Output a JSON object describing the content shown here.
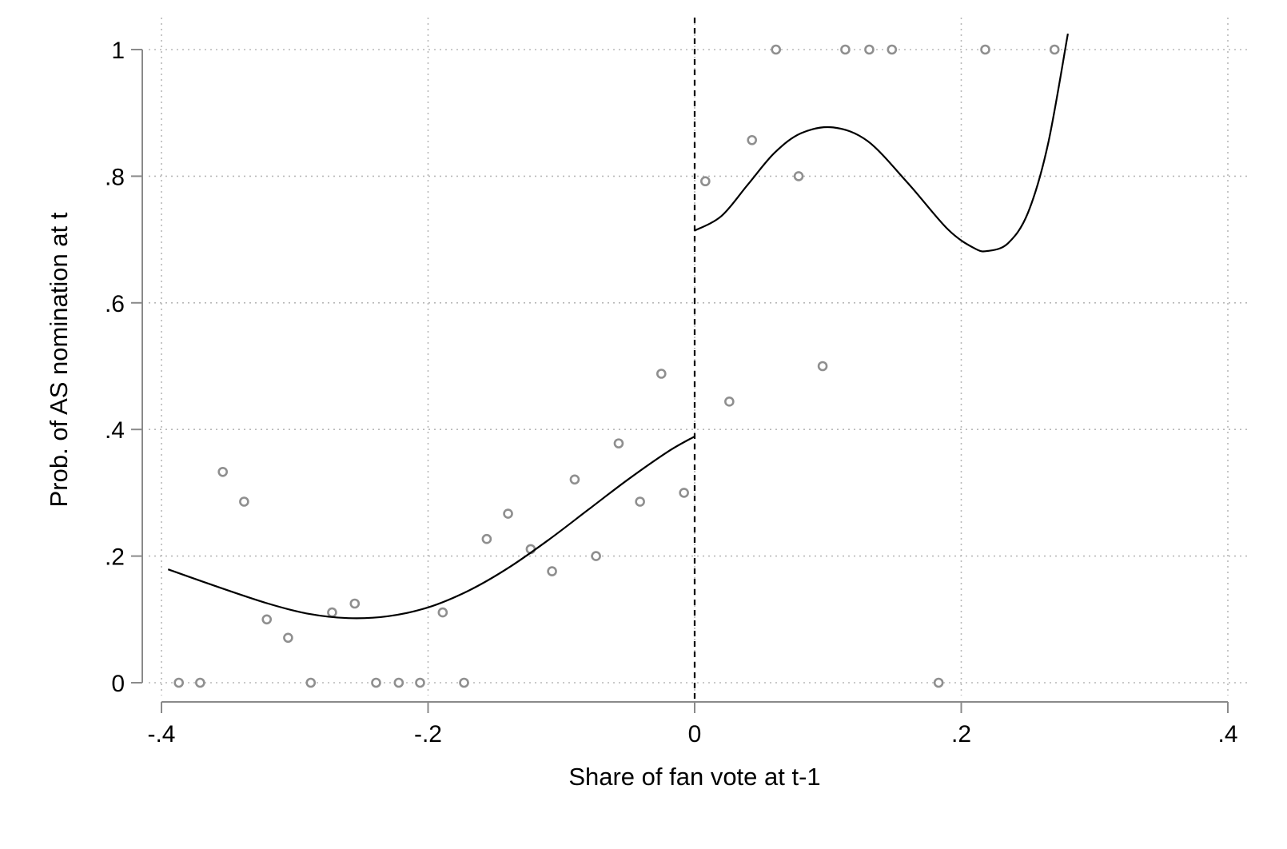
{
  "chart_data": {
    "type": "scatter",
    "title": "",
    "xlabel": "Share of fan vote at t-1",
    "ylabel": "Prob. of AS nomination at t",
    "xlim": [
      -0.4,
      0.4
    ],
    "ylim": [
      0,
      1
    ],
    "x_ticks": [
      -0.4,
      -0.2,
      0,
      0.2,
      0.4
    ],
    "x_tick_labels": [
      "-.4",
      "-.2",
      "0",
      ".2",
      ".4"
    ],
    "y_ticks": [
      0,
      0.2,
      0.4,
      0.6,
      0.8,
      1
    ],
    "y_tick_labels": [
      "0",
      ".2",
      ".4",
      ".6",
      ".8",
      "1"
    ],
    "grid": true,
    "cutoff_x": 0,
    "colors": {
      "points": "#8f8f8f",
      "fit": "#000000",
      "grid": "#b8b8b8",
      "axis": "#8a8a8a"
    },
    "points": [
      {
        "x": -0.387,
        "y": 0.0
      },
      {
        "x": -0.371,
        "y": 0.0
      },
      {
        "x": -0.354,
        "y": 0.333
      },
      {
        "x": -0.338,
        "y": 0.286
      },
      {
        "x": -0.321,
        "y": 0.1
      },
      {
        "x": -0.305,
        "y": 0.071
      },
      {
        "x": -0.288,
        "y": 0.0
      },
      {
        "x": -0.272,
        "y": 0.111
      },
      {
        "x": -0.255,
        "y": 0.125
      },
      {
        "x": -0.239,
        "y": 0.0
      },
      {
        "x": -0.222,
        "y": 0.0
      },
      {
        "x": -0.206,
        "y": 0.0
      },
      {
        "x": -0.189,
        "y": 0.111
      },
      {
        "x": -0.173,
        "y": 0.0
      },
      {
        "x": -0.156,
        "y": 0.227
      },
      {
        "x": -0.14,
        "y": 0.267
      },
      {
        "x": -0.123,
        "y": 0.211
      },
      {
        "x": -0.107,
        "y": 0.176
      },
      {
        "x": -0.09,
        "y": 0.321
      },
      {
        "x": -0.074,
        "y": 0.2
      },
      {
        "x": -0.057,
        "y": 0.378
      },
      {
        "x": -0.041,
        "y": 0.286
      },
      {
        "x": -0.025,
        "y": 0.488
      },
      {
        "x": -0.008,
        "y": 0.3
      },
      {
        "x": 0.008,
        "y": 0.792
      },
      {
        "x": 0.026,
        "y": 0.444
      },
      {
        "x": 0.043,
        "y": 0.857
      },
      {
        "x": 0.061,
        "y": 1.0
      },
      {
        "x": 0.078,
        "y": 0.8
      },
      {
        "x": 0.096,
        "y": 0.5
      },
      {
        "x": 0.113,
        "y": 1.0
      },
      {
        "x": 0.131,
        "y": 1.0
      },
      {
        "x": 0.148,
        "y": 1.0
      },
      {
        "x": 0.183,
        "y": 0.0
      },
      {
        "x": 0.218,
        "y": 1.0
      },
      {
        "x": 0.27,
        "y": 1.0
      }
    ],
    "fit_left": [
      {
        "x": -0.395,
        "y": 0.179
      },
      {
        "x": -0.36,
        "y": 0.153
      },
      {
        "x": -0.32,
        "y": 0.125
      },
      {
        "x": -0.29,
        "y": 0.109
      },
      {
        "x": -0.26,
        "y": 0.102
      },
      {
        "x": -0.23,
        "y": 0.105
      },
      {
        "x": -0.2,
        "y": 0.119
      },
      {
        "x": -0.17,
        "y": 0.145
      },
      {
        "x": -0.14,
        "y": 0.181
      },
      {
        "x": -0.11,
        "y": 0.225
      },
      {
        "x": -0.08,
        "y": 0.273
      },
      {
        "x": -0.05,
        "y": 0.321
      },
      {
        "x": -0.02,
        "y": 0.365
      },
      {
        "x": 0.0,
        "y": 0.389
      }
    ],
    "fit_right": [
      {
        "x": 0.0,
        "y": 0.714
      },
      {
        "x": 0.02,
        "y": 0.737
      },
      {
        "x": 0.04,
        "y": 0.787
      },
      {
        "x": 0.06,
        "y": 0.837
      },
      {
        "x": 0.08,
        "y": 0.868
      },
      {
        "x": 0.104,
        "y": 0.877
      },
      {
        "x": 0.13,
        "y": 0.855
      },
      {
        "x": 0.16,
        "y": 0.789
      },
      {
        "x": 0.19,
        "y": 0.716
      },
      {
        "x": 0.21,
        "y": 0.686
      },
      {
        "x": 0.22,
        "y": 0.682
      },
      {
        "x": 0.235,
        "y": 0.694
      },
      {
        "x": 0.25,
        "y": 0.742
      },
      {
        "x": 0.265,
        "y": 0.85
      },
      {
        "x": 0.28,
        "y": 1.025
      }
    ]
  }
}
